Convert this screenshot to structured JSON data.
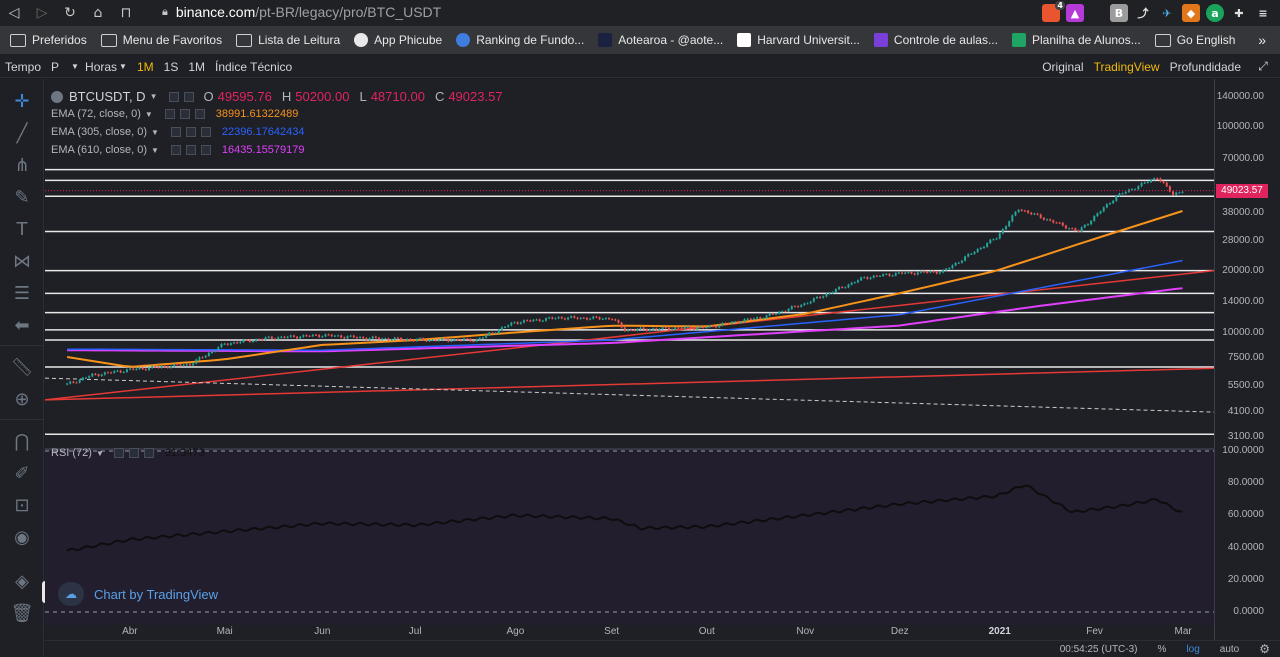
{
  "browser": {
    "url_host": "binance.com",
    "url_path": "/pt-BR/legacy/pro/BTC_USDT",
    "bookmarks": [
      "Preferidos",
      "Menu de Favoritos",
      "Lista de Leitura",
      "App Phicube",
      "Ranking de Fundo...",
      "Aotearoa - @aote...",
      "Harvard Universit...",
      "Controle de aulas...",
      "Planilha de Alunos...",
      "Go English"
    ],
    "extension_badge": "4"
  },
  "toolbar": {
    "time_label": "Tempo",
    "period_value": "P",
    "hours_label": "Horas",
    "intervals": [
      "1M",
      "1S",
      "1M"
    ],
    "indicators_label": "Índice Técnico",
    "views": [
      "Original",
      "TradingView",
      "Profundidade"
    ]
  },
  "legend": {
    "symbol": "BTCUSDT, D",
    "open_label": "O",
    "open": "49595.76",
    "high_label": "H",
    "high": "50200.00",
    "low_label": "L",
    "low": "48710.00",
    "close_label": "C",
    "close": "49023.57",
    "ema72_label": "EMA (72, close, 0)",
    "ema72": "38991.61322489",
    "ema305_label": "EMA (305, close, 0)",
    "ema305": "22396.17642434",
    "ema610_label": "EMA (610, close, 0)",
    "ema610": "16435.15579179",
    "rsi_label": "RSI (72)",
    "rsi": "61.3473"
  },
  "price_axis": {
    "labels": [
      "140000.00",
      "100000.00",
      "70000.00",
      "50000.00",
      "38000.00",
      "28000.00",
      "20000.00",
      "14000.00",
      "10000.00",
      "7500.00",
      "5500.00",
      "4100.00",
      "3100.00"
    ],
    "last_price": "49023.57",
    "rsi_labels": [
      "100.0000",
      "80.0000",
      "60.0000",
      "40.0000",
      "20.0000",
      "0.0000"
    ]
  },
  "time_axis": {
    "labels": [
      "Abr",
      "Mai",
      "Jun",
      "Jul",
      "Ago",
      "Set",
      "Out",
      "Nov",
      "Dez",
      "2021",
      "Fev",
      "Mar"
    ]
  },
  "watermark": "Chart by TradingView",
  "bottom": {
    "clock": "00:54:25 (UTC-3)",
    "percent": "%",
    "log": "log",
    "auto": "auto"
  },
  "colors": {
    "up": "#26a69a",
    "down": "#ef5350",
    "ema72": "#f7931a",
    "ema305": "#2962ff",
    "ema610": "#e040fb",
    "accent": "#f0b90b",
    "rsi_line": "#0d0d0d"
  },
  "chart_data": {
    "type": "candlestick",
    "symbol": "BTCUSDT",
    "interval": "D",
    "y_scale": "log",
    "price_range": [
      3000,
      160000
    ],
    "horizontal_levels": [
      62000,
      55000,
      46000,
      31000,
      20000,
      15500,
      12500,
      10300,
      9200,
      6800,
      3200
    ],
    "close_series": [
      [
        "2020-03-12",
        5600
      ],
      [
        "2020-03-20",
        6200
      ],
      [
        "2020-04-01",
        6600
      ],
      [
        "2020-04-20",
        7000
      ],
      [
        "2020-05-01",
        8800
      ],
      [
        "2020-05-15",
        9400
      ],
      [
        "2020-06-01",
        9700
      ],
      [
        "2020-06-15",
        9400
      ],
      [
        "2020-07-01",
        9200
      ],
      [
        "2020-07-20",
        9200
      ],
      [
        "2020-08-01",
        11200
      ],
      [
        "2020-08-15",
        11800
      ],
      [
        "2020-09-01",
        11700
      ],
      [
        "2020-09-05",
        10300
      ],
      [
        "2020-10-01",
        10600
      ],
      [
        "2020-10-20",
        12000
      ],
      [
        "2020-11-01",
        13800
      ],
      [
        "2020-11-20",
        18500
      ],
      [
        "2020-12-01",
        19400
      ],
      [
        "2020-12-15",
        19800
      ],
      [
        "2021-01-01",
        29000
      ],
      [
        "2021-01-08",
        40000
      ],
      [
        "2021-01-27",
        31000
      ],
      [
        "2021-02-08",
        46000
      ],
      [
        "2021-02-21",
        57000
      ],
      [
        "2021-02-26",
        47000
      ],
      [
        "2021-03-01",
        49023.57
      ]
    ],
    "ema72_series": [
      [
        "2020-03-12",
        7600
      ],
      [
        "2020-04-01",
        6800
      ],
      [
        "2020-05-01",
        7400
      ],
      [
        "2020-06-01",
        8700
      ],
      [
        "2020-07-01",
        9200
      ],
      [
        "2020-08-01",
        10000
      ],
      [
        "2020-09-01",
        10800
      ],
      [
        "2020-10-01",
        10700
      ],
      [
        "2020-11-01",
        12300
      ],
      [
        "2020-12-01",
        15500
      ],
      [
        "2021-01-01",
        20000
      ],
      [
        "2021-02-01",
        28500
      ],
      [
        "2021-03-01",
        38991.61
      ]
    ],
    "ema305_series": [
      [
        "2020-03-12",
        8300
      ],
      [
        "2020-06-01",
        8200
      ],
      [
        "2020-09-01",
        9200
      ],
      [
        "2020-12-01",
        12200
      ],
      [
        "2021-01-15",
        16500
      ],
      [
        "2021-03-01",
        22396.18
      ]
    ],
    "ema610_series": [
      [
        "2020-03-12",
        8200
      ],
      [
        "2020-06-01",
        8100
      ],
      [
        "2020-09-01",
        8900
      ],
      [
        "2020-12-01",
        10800
      ],
      [
        "2021-01-15",
        13500
      ],
      [
        "2021-03-01",
        16435.16
      ]
    ],
    "rsi_series": [
      [
        "2020-03-12",
        38
      ],
      [
        "2020-04-01",
        45
      ],
      [
        "2020-05-01",
        50
      ],
      [
        "2020-06-01",
        55
      ],
      [
        "2020-07-01",
        54
      ],
      [
        "2020-08-01",
        60
      ],
      [
        "2020-09-01",
        58
      ],
      [
        "2020-09-10",
        52
      ],
      [
        "2020-10-01",
        53
      ],
      [
        "2020-11-01",
        60
      ],
      [
        "2020-12-01",
        67
      ],
      [
        "2021-01-01",
        72
      ],
      [
        "2021-01-10",
        79
      ],
      [
        "2021-01-25",
        62
      ],
      [
        "2021-02-10",
        66
      ],
      [
        "2021-02-21",
        70
      ],
      [
        "2021-03-01",
        61.35
      ]
    ]
  }
}
